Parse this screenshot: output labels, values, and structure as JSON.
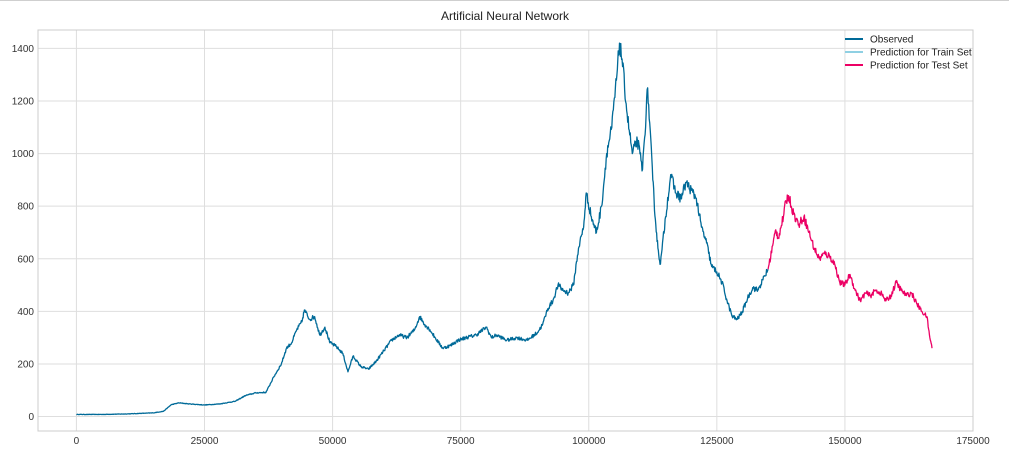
{
  "chart_data": {
    "type": "line",
    "title": "Artificial Neural Network",
    "xlabel": "",
    "ylabel": "",
    "xlim": [
      -7500,
      175000
    ],
    "ylim": [
      -55,
      1470
    ],
    "xticks": [
      0,
      25000,
      50000,
      75000,
      100000,
      125000,
      150000,
      175000
    ],
    "xtick_labels": [
      "0",
      "25000",
      "50000",
      "75000",
      "100000",
      "125000",
      "150000",
      "175000"
    ],
    "yticks": [
      0,
      200,
      400,
      600,
      800,
      1000,
      1200,
      1400
    ],
    "ytick_labels": [
      "0",
      "200",
      "400",
      "600",
      "800",
      "1000",
      "1200",
      "1400"
    ],
    "grid": true,
    "legend_position": "top-right",
    "series": [
      {
        "name": "Observed",
        "color": "#006a98",
        "points": [
          [
            0,
            8
          ],
          [
            5000,
            8
          ],
          [
            10000,
            10
          ],
          [
            15000,
            14
          ],
          [
            17000,
            20
          ],
          [
            18500,
            45
          ],
          [
            20000,
            52
          ],
          [
            22000,
            48
          ],
          [
            25000,
            44
          ],
          [
            28000,
            48
          ],
          [
            31000,
            58
          ],
          [
            33000,
            80
          ],
          [
            35000,
            90
          ],
          [
            37000,
            92
          ],
          [
            38500,
            150
          ],
          [
            40000,
            200
          ],
          [
            41000,
            260
          ],
          [
            42000,
            280
          ],
          [
            43000,
            330
          ],
          [
            44000,
            360
          ],
          [
            44500,
            405
          ],
          [
            45500,
            370
          ],
          [
            46500,
            380
          ],
          [
            47500,
            310
          ],
          [
            48500,
            340
          ],
          [
            49500,
            280
          ],
          [
            50500,
            270
          ],
          [
            52000,
            240
          ],
          [
            53000,
            170
          ],
          [
            54000,
            230
          ],
          [
            55500,
            190
          ],
          [
            57000,
            180
          ],
          [
            58500,
            210
          ],
          [
            60000,
            250
          ],
          [
            61500,
            290
          ],
          [
            63000,
            310
          ],
          [
            64500,
            300
          ],
          [
            66000,
            330
          ],
          [
            67000,
            380
          ],
          [
            68000,
            350
          ],
          [
            69000,
            330
          ],
          [
            70000,
            300
          ],
          [
            71500,
            260
          ],
          [
            73000,
            270
          ],
          [
            74500,
            290
          ],
          [
            76000,
            300
          ],
          [
            78000,
            310
          ],
          [
            80000,
            340
          ],
          [
            81000,
            300
          ],
          [
            82000,
            310
          ],
          [
            84000,
            290
          ],
          [
            86000,
            300
          ],
          [
            88000,
            290
          ],
          [
            90000,
            320
          ],
          [
            91000,
            350
          ],
          [
            92000,
            410
          ],
          [
            93000,
            440
          ],
          [
            94000,
            500
          ],
          [
            95000,
            480
          ],
          [
            96000,
            470
          ],
          [
            97000,
            500
          ],
          [
            98000,
            640
          ],
          [
            99000,
            720
          ],
          [
            99500,
            850
          ],
          [
            100500,
            760
          ],
          [
            101500,
            700
          ],
          [
            102500,
            800
          ],
          [
            103500,
            1000
          ],
          [
            104500,
            1100
          ],
          [
            105500,
            1300
          ],
          [
            106000,
            1420
          ],
          [
            106500,
            1360
          ],
          [
            107500,
            1150
          ],
          [
            108500,
            1000
          ],
          [
            109500,
            1050
          ],
          [
            110500,
            940
          ],
          [
            111500,
            1250
          ],
          [
            112500,
            900
          ],
          [
            113000,
            750
          ],
          [
            113500,
            640
          ],
          [
            114000,
            580
          ],
          [
            115000,
            760
          ],
          [
            116000,
            920
          ],
          [
            117000,
            850
          ],
          [
            118000,
            830
          ],
          [
            119000,
            890
          ],
          [
            120000,
            860
          ],
          [
            121000,
            830
          ],
          [
            122000,
            720
          ],
          [
            123000,
            660
          ],
          [
            124000,
            570
          ],
          [
            125000,
            550
          ],
          [
            126000,
            510
          ],
          [
            127000,
            440
          ],
          [
            128000,
            380
          ],
          [
            129000,
            370
          ],
          [
            130000,
            400
          ],
          [
            131000,
            450
          ],
          [
            132000,
            490
          ],
          [
            133000,
            480
          ],
          [
            134000,
            520
          ],
          [
            135000,
            560
          ]
        ]
      },
      {
        "name": "Prediction for Train Set",
        "color": "#8fd0e3",
        "points": []
      },
      {
        "name": "Prediction for Test Set",
        "color": "#ec0064",
        "points": [
          [
            135000,
            560
          ],
          [
            136000,
            660
          ],
          [
            136500,
            710
          ],
          [
            137000,
            680
          ],
          [
            138000,
            760
          ],
          [
            138500,
            820
          ],
          [
            139000,
            840
          ],
          [
            140000,
            770
          ],
          [
            141000,
            730
          ],
          [
            142000,
            760
          ],
          [
            143000,
            700
          ],
          [
            144000,
            640
          ],
          [
            145000,
            600
          ],
          [
            146000,
            620
          ],
          [
            147000,
            610
          ],
          [
            148000,
            580
          ],
          [
            149000,
            510
          ],
          [
            150000,
            500
          ],
          [
            151000,
            540
          ],
          [
            152000,
            480
          ],
          [
            153000,
            440
          ],
          [
            154000,
            470
          ],
          [
            155000,
            460
          ],
          [
            156000,
            480
          ],
          [
            157000,
            470
          ],
          [
            158000,
            440
          ],
          [
            159000,
            460
          ],
          [
            160000,
            510
          ],
          [
            161000,
            480
          ],
          [
            162000,
            460
          ],
          [
            163000,
            470
          ],
          [
            164000,
            430
          ],
          [
            165000,
            400
          ],
          [
            166000,
            380
          ],
          [
            166500,
            310
          ],
          [
            167000,
            260
          ]
        ]
      }
    ]
  }
}
